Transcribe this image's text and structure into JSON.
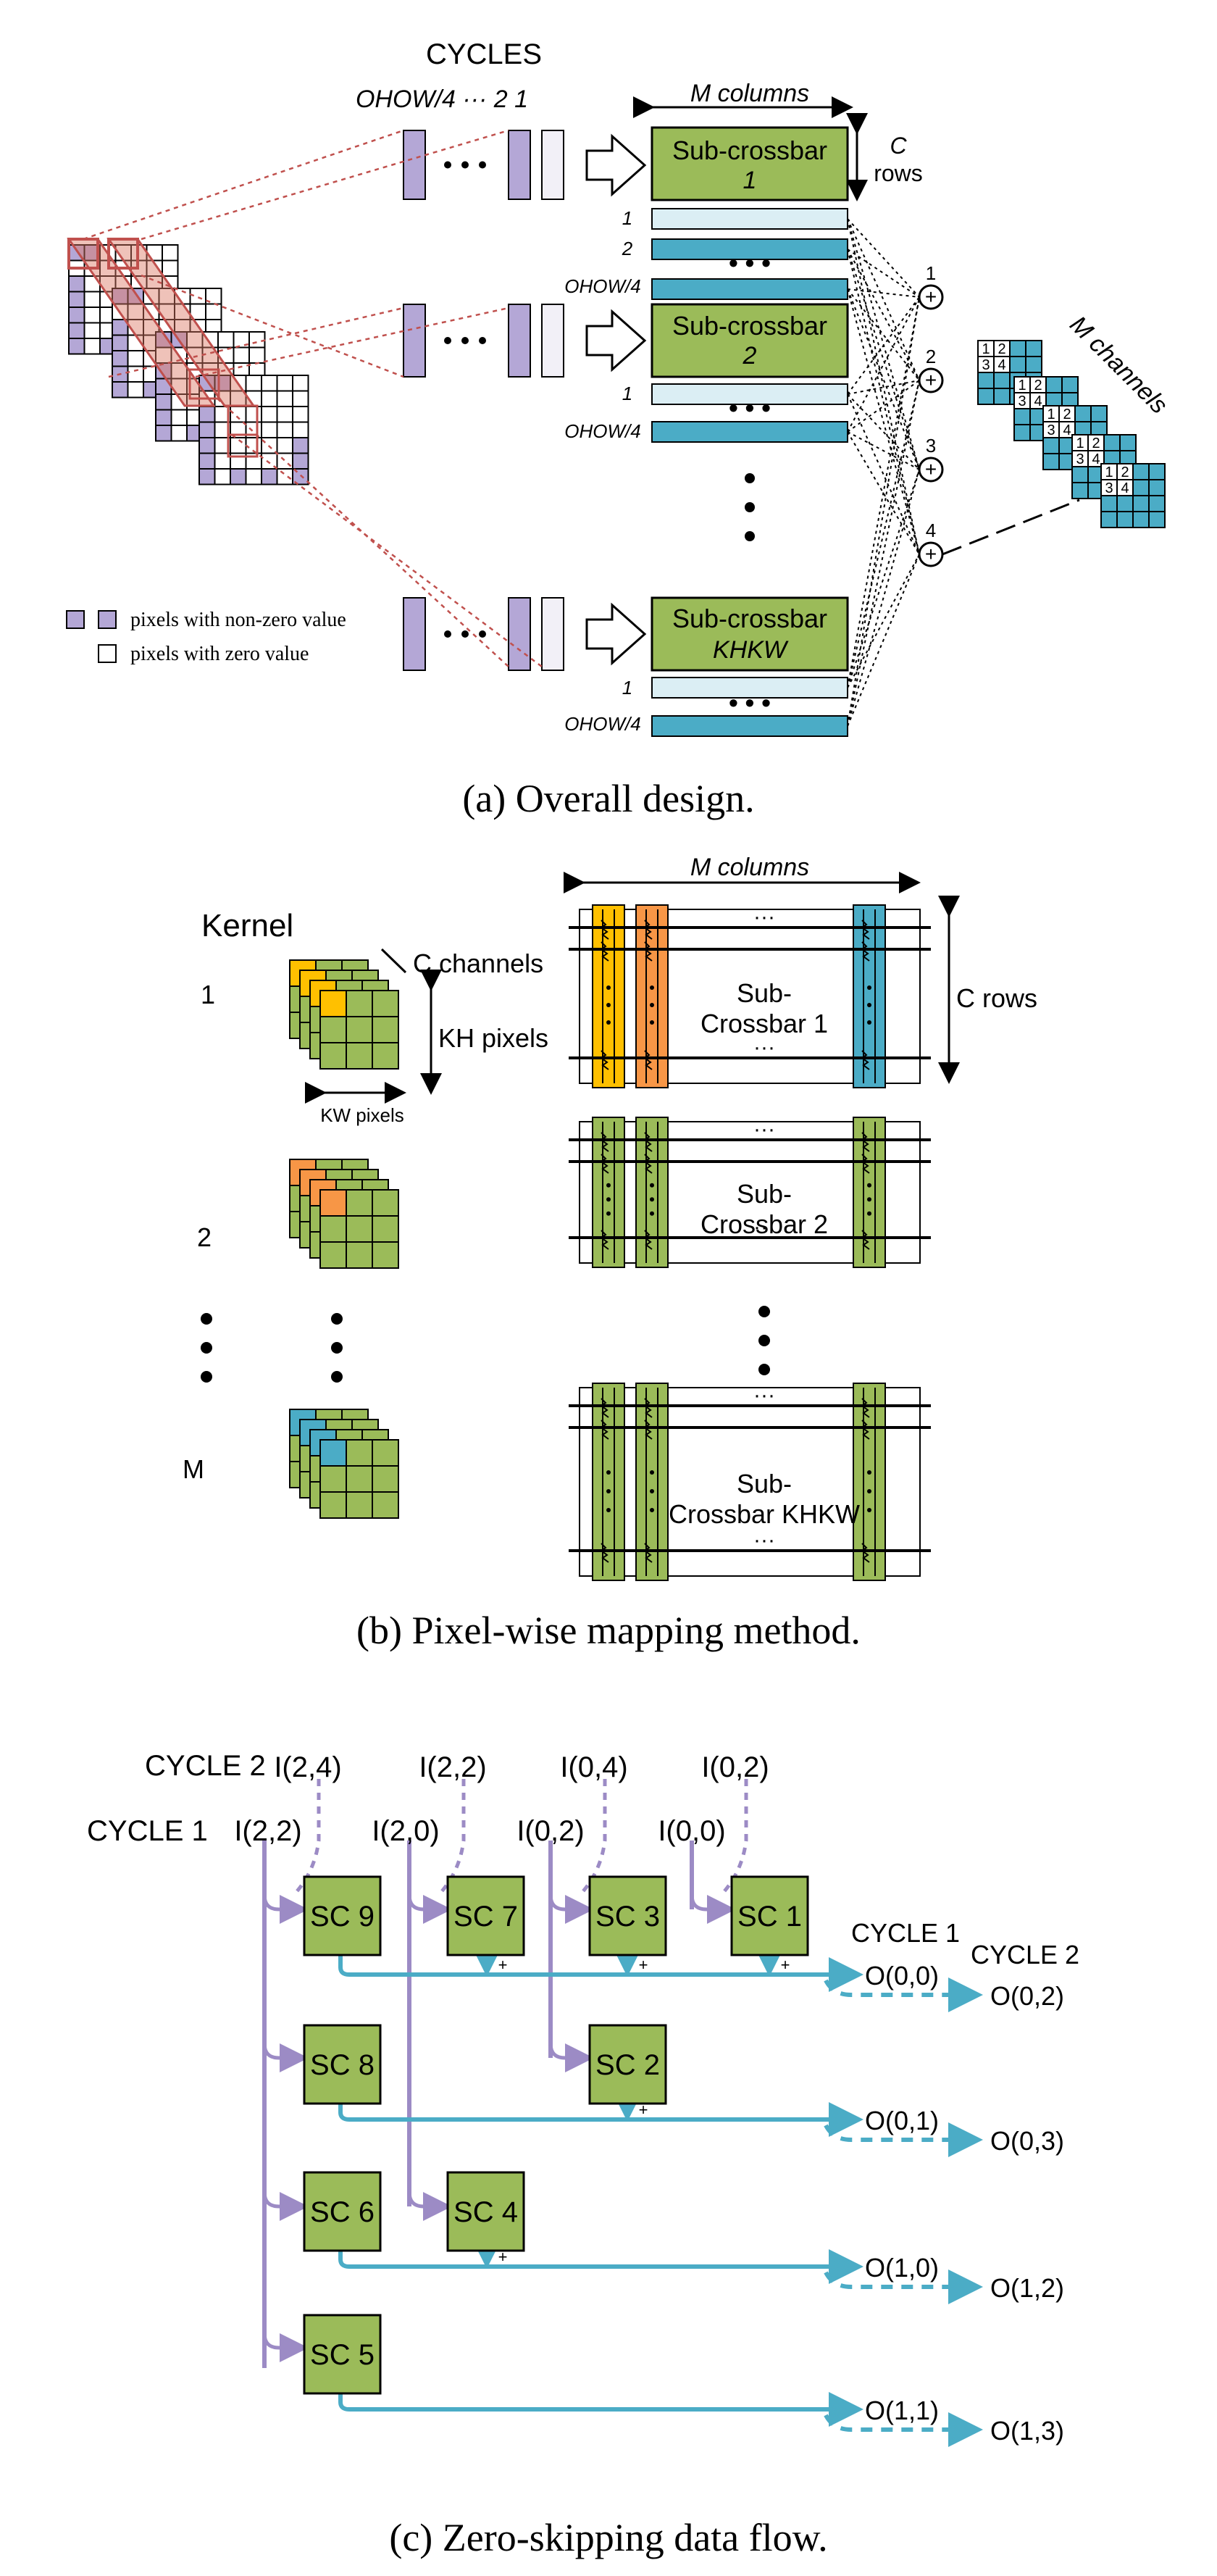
{
  "colors": {
    "green": "#9bbb59",
    "greenDark": "#4f6228",
    "purple": "#b4a7d6",
    "blue": "#4bacc6",
    "blueLight": "#dbeef4",
    "orange": "#f79646",
    "yellow": "#ffc000",
    "red": "#c0504d",
    "lavender": "#9c8bc5"
  },
  "panel_a": {
    "caption": "(a) Overall design.",
    "cycles": "CYCLES",
    "cycle_seq": "OHOW/4 ··· 2  1",
    "m_columns": "M columns",
    "c_rows_c": "C",
    "c_rows": "rows",
    "sc1_line1": "Sub-crossbar",
    "sc1_line2": "1",
    "sc2_line1": "Sub-crossbar",
    "sc2_line2": "2",
    "sc3_line1": "Sub-crossbar",
    "sc3_line2": "KHKW",
    "row_1": "1",
    "row_2": "2",
    "row_last": "OHOW/4",
    "sum_1": "1",
    "sum_2": "2",
    "sum_3": "3",
    "sum_4": "4",
    "m_channels": "M channels",
    "legend_nonzero": "pixels with non-zero value",
    "legend_zero": "pixels with zero value",
    "cell_labels": [
      "1",
      "2",
      "3",
      "4"
    ]
  },
  "panel_b": {
    "caption": "(b) Pixel-wise mapping method.",
    "kernel": "Kernel",
    "k1": "1",
    "k2": "2",
    "kM": "M",
    "c_channels": "C channels",
    "kh_pixels": "KH pixels",
    "kw_pixels": "KW pixels",
    "m_columns": "M columns",
    "c_rows": "C rows",
    "sc1_line1": "Sub-",
    "sc1_line2": "Crossbar 1",
    "sc2_line1": "Sub-",
    "sc2_line2": "Crossbar 2",
    "sc3_line1": "Sub-",
    "sc3_line2": "Crossbar KHKW",
    "dots": "···"
  },
  "panel_c": {
    "caption": "(c) Zero-skipping data flow.",
    "cycle2": "CYCLE 2",
    "cycle1": "CYCLE 1",
    "in_c2": [
      "I(2,4)",
      "I(2,2)",
      "I(0,4)",
      "I(0,2)"
    ],
    "in_c1": [
      "I(2,2)",
      "I(2,0)",
      "I(0,2)",
      "I(0,0)"
    ],
    "sc": {
      "sc9": "SC 9",
      "sc7": "SC 7",
      "sc3": "SC 3",
      "sc1": "SC 1",
      "sc8": "SC 8",
      "sc2": "SC 2",
      "sc6": "SC 6",
      "sc4": "SC 4",
      "sc5": "SC 5"
    },
    "out_cycle1": "CYCLE 1",
    "out_cycle2": "CYCLE 2",
    "out_c1": [
      "O(0,0)",
      "O(0,1)",
      "O(1,0)",
      "O(1,1)"
    ],
    "out_c2": [
      "O(0,2)",
      "O(0,3)",
      "O(1,2)",
      "O(1,3)"
    ],
    "plus": "+"
  }
}
